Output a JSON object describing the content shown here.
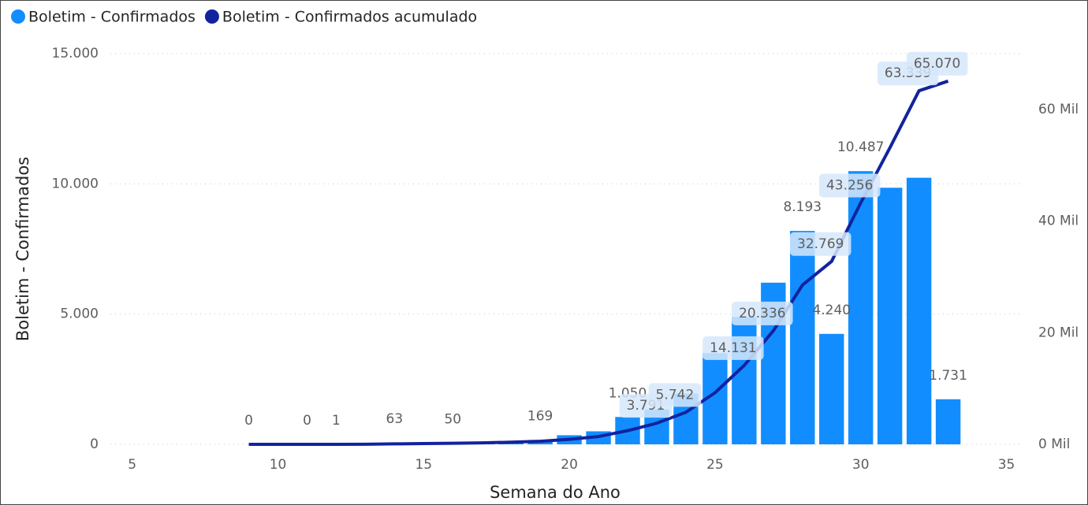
{
  "chart_data": {
    "type": "combo",
    "x_label": "Semana do Ano",
    "y_label": "Boletim - Confirmados",
    "x": [
      9,
      10,
      11,
      12,
      13,
      14,
      15,
      16,
      17,
      18,
      19,
      20,
      21,
      22,
      23,
      24,
      25,
      26,
      27,
      28,
      29,
      30,
      31,
      32,
      33
    ],
    "series": [
      {
        "name": "Boletim - Confirmados",
        "color": "#118DFF",
        "kind": "bar",
        "values": [
          0,
          0,
          0,
          1,
          20,
          63,
          55,
          50,
          80,
          113,
          169,
          350,
          500,
          1050,
          1340,
          1951,
          3500,
          4889,
          6205,
          8193,
          4240,
          10487,
          9850,
          10233,
          1731
        ],
        "value_labels": [
          "0",
          null,
          "0",
          "1",
          null,
          "63",
          null,
          "50",
          null,
          null,
          "169",
          null,
          null,
          "1.050",
          null,
          null,
          null,
          null,
          null,
          "8.193",
          "4.240",
          "10.487",
          null,
          null,
          "1.731"
        ]
      },
      {
        "name": "Boletim - Confirmados acumulado",
        "color": "#12239E",
        "kind": "line",
        "axis": "y2",
        "values": [
          0,
          0,
          0,
          1,
          21,
          84,
          139,
          189,
          269,
          382,
          551,
          901,
          1401,
          2451,
          3791,
          5742,
          9242,
          14131,
          20336,
          28529,
          32769,
          43256,
          53106,
          63339,
          65070
        ],
        "value_labels": [
          null,
          null,
          null,
          null,
          null,
          null,
          null,
          null,
          null,
          null,
          null,
          null,
          null,
          null,
          "3.791",
          "5.742",
          null,
          "14.131",
          "20.336",
          null,
          "32.769",
          "43.256",
          null,
          "63.339",
          "65.070"
        ]
      }
    ],
    "xlim": [
      4.25,
      35.5
    ],
    "xticks": [
      5,
      10,
      15,
      20,
      25,
      30,
      35
    ],
    "ylim": [
      0,
      15000
    ],
    "yticks": [
      0,
      {
        "value": 5000,
        "label": "5.000"
      },
      {
        "value": 10000,
        "label": "10.000"
      },
      {
        "value": 15000,
        "label": "15.000"
      }
    ],
    "y2lim": [
      0,
      70000
    ],
    "y2ticks": [
      {
        "value": 0,
        "label": "0 Mil"
      },
      {
        "value": 20000,
        "label": "20 Mil"
      },
      {
        "value": 40000,
        "label": "40 Mil"
      },
      {
        "value": 60000,
        "label": "60 Mil"
      }
    ],
    "grid": true
  }
}
